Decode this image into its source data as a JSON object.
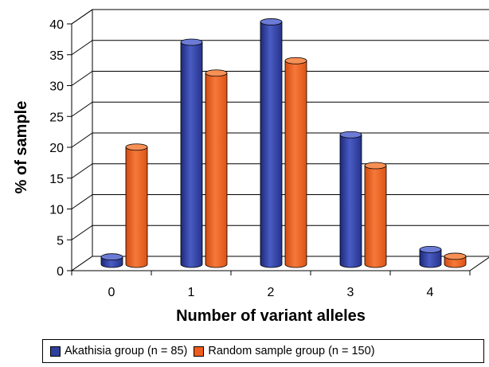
{
  "chart_data": {
    "type": "bar",
    "xlabel": "Number of variant alleles",
    "ylabel": "% of  sample",
    "categories": [
      "0",
      "1",
      "2",
      "3",
      "4"
    ],
    "series": [
      {
        "name": "Akathisia group (n = 85)",
        "color": "#2e3f9e",
        "values": [
          1.2,
          36,
          39.3,
          21,
          2.4
        ]
      },
      {
        "name": "Random sample group (n = 150)",
        "color": "#ef5d1c",
        "values": [
          19,
          31,
          33,
          16,
          1.3
        ]
      }
    ],
    "ylim": [
      0,
      40
    ],
    "yticks": [
      "0",
      "5",
      "10",
      "15",
      "20",
      "25",
      "30",
      "35",
      "40"
    ],
    "grid": true,
    "legend_position": "bottom"
  }
}
